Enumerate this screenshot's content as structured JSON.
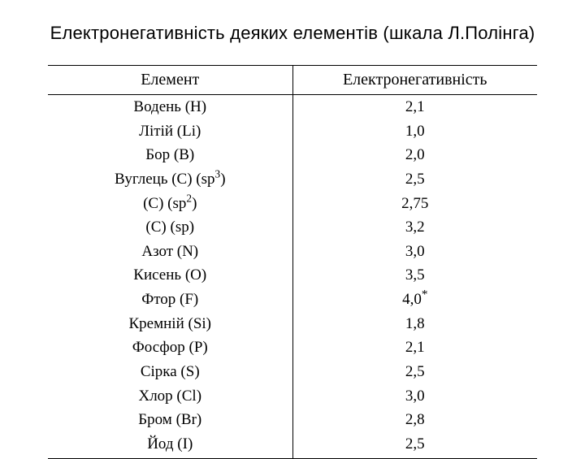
{
  "title": "Електронегативність деяких елементів (шкала Л.Полінга)",
  "table": {
    "columns": [
      "Елемент",
      "Електронегативність"
    ],
    "col_widths": [
      "50%",
      "50%"
    ],
    "header_fontsize": 20,
    "body_fontsize": 19,
    "font_family": "Times New Roman",
    "border_color": "#000000",
    "background_color": "#ffffff",
    "text_color": "#000000",
    "rows": [
      {
        "element_base": "Водень (H)",
        "element_sup": "",
        "value": "2,1",
        "value_mark": ""
      },
      {
        "element_base": "Літій (Li)",
        "element_sup": "",
        "value": "1,0",
        "value_mark": ""
      },
      {
        "element_base": "Бор (B)",
        "element_sup": "",
        "value": "2,0",
        "value_mark": ""
      },
      {
        "element_base": "Вуглець (C) (sp",
        "element_sup": "3",
        "element_tail": ")",
        "value": "2,5",
        "value_mark": ""
      },
      {
        "element_base": "(C) (sp",
        "element_sup": "2",
        "element_tail": ")",
        "value": "2,75",
        "value_mark": ""
      },
      {
        "element_base": "(C) (sp)",
        "element_sup": "",
        "value": "3,2",
        "value_mark": ""
      },
      {
        "element_base": "Азот (N)",
        "element_sup": "",
        "value": "3,0",
        "value_mark": ""
      },
      {
        "element_base": "Кисень (O)",
        "element_sup": "",
        "value": "3,5",
        "value_mark": ""
      },
      {
        "element_base": "Фтор (F)",
        "element_sup": "",
        "value": "4,0",
        "value_mark": "*"
      },
      {
        "element_base": "Кремній (Si)",
        "element_sup": "",
        "value": "1,8",
        "value_mark": ""
      },
      {
        "element_base": "Фосфор (P)",
        "element_sup": "",
        "value": "2,1",
        "value_mark": ""
      },
      {
        "element_base": "Сірка (S)",
        "element_sup": "",
        "value": "2,5",
        "value_mark": ""
      },
      {
        "element_base": "Хлор (Cl)",
        "element_sup": "",
        "value": "3,0",
        "value_mark": ""
      },
      {
        "element_base": "Бром (Br)",
        "element_sup": "",
        "value": "2,8",
        "value_mark": ""
      },
      {
        "element_base": "Йод (I)",
        "element_sup": "",
        "value": "2,5",
        "value_mark": ""
      }
    ]
  }
}
